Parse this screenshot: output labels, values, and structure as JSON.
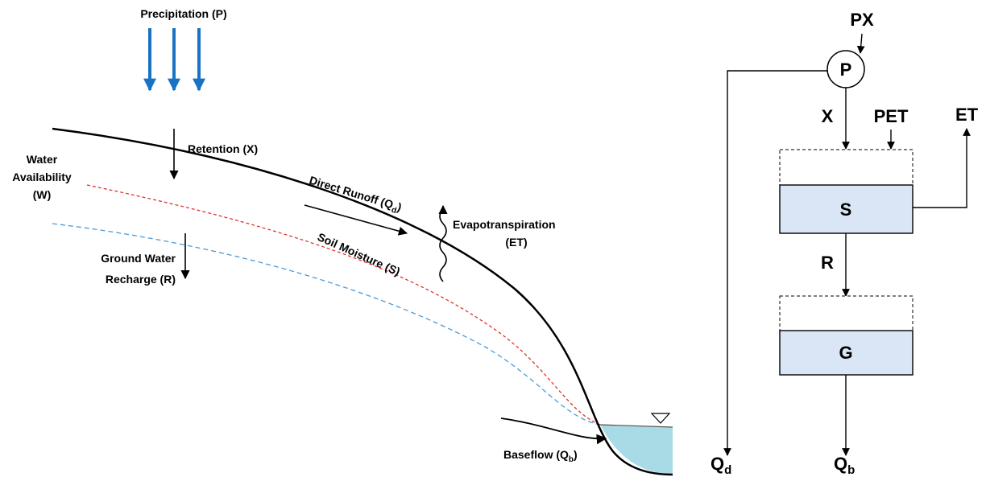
{
  "scene": {
    "precipitation": "Precipitation (P)",
    "retention": "Retention (X)",
    "water_availability": [
      "Water",
      "Availability",
      "(W)"
    ],
    "direct_runoff": {
      "text": "Direct Runoff (Q",
      "sub": "d",
      "close": ")"
    },
    "evapotranspiration": [
      "Evapotranspiration",
      "(ET)"
    ],
    "soil_moisture": "Soil Moisture (S)",
    "recharge": [
      "Ground Water",
      "Recharge (R)"
    ],
    "baseflow": {
      "text": "Baseflow (Q",
      "sub": "b",
      "close": ")"
    }
  },
  "model": {
    "input": "PX",
    "node": "P",
    "retention": "X",
    "pet": "PET",
    "et": "ET",
    "soil_store": "S",
    "recharge": "R",
    "ground_store": "G",
    "direct_flow": {
      "text": "Q",
      "sub": "d"
    },
    "base_flow": {
      "text": "Q",
      "sub": "b"
    }
  }
}
